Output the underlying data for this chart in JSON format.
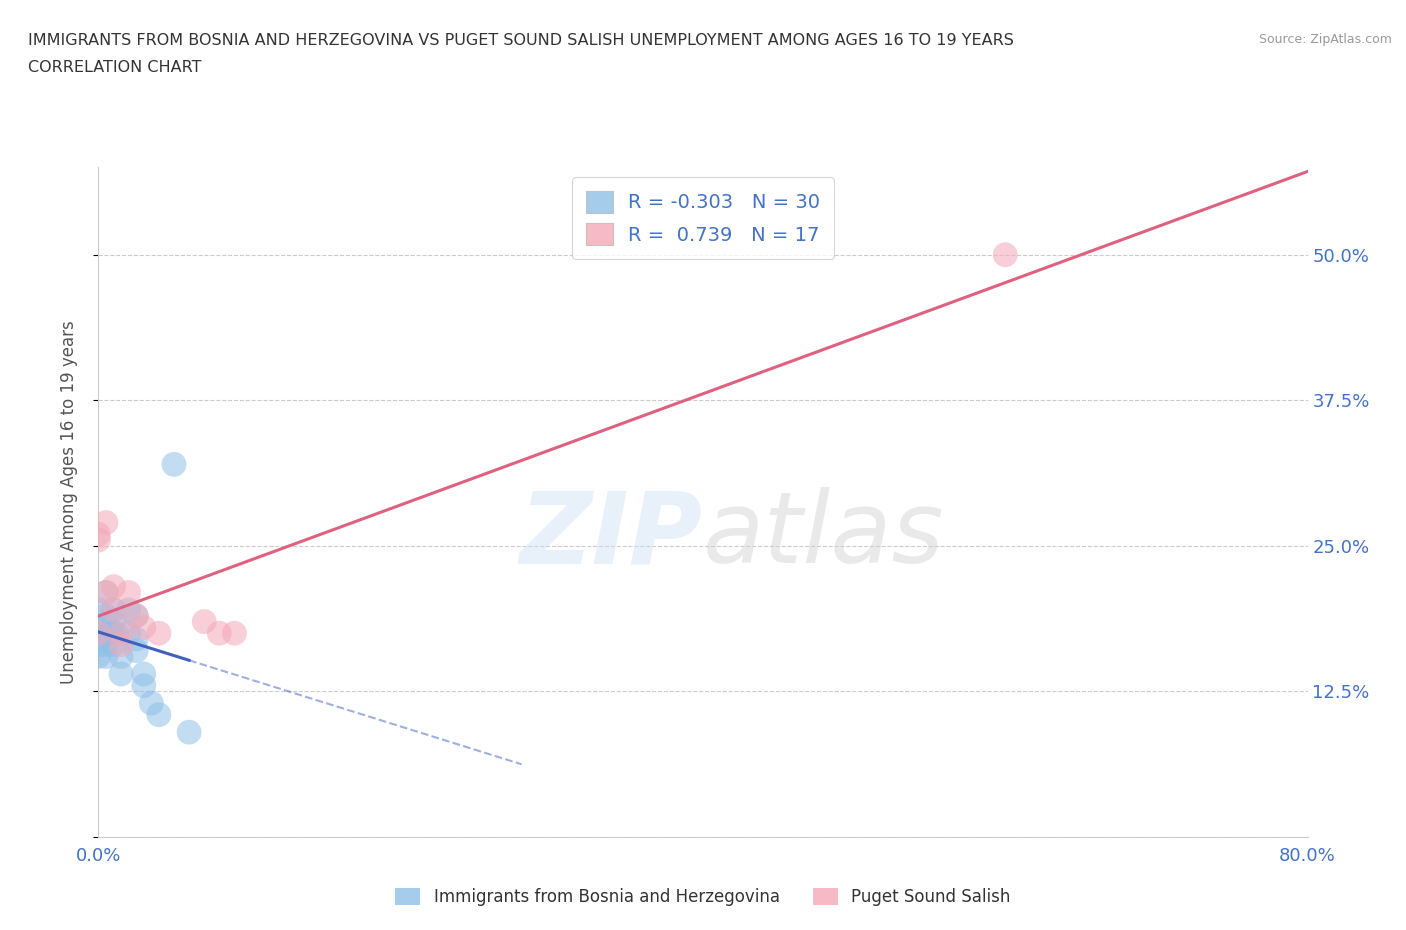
{
  "title_line1": "IMMIGRANTS FROM BOSNIA AND HERZEGOVINA VS PUGET SOUND SALISH UNEMPLOYMENT AMONG AGES 16 TO 19 YEARS",
  "title_line2": "CORRELATION CHART",
  "source": "Source: ZipAtlas.com",
  "ylabel": "Unemployment Among Ages 16 to 19 years",
  "xlim": [
    0.0,
    0.8
  ],
  "ylim": [
    0.0,
    0.575
  ],
  "xticks": [
    0.0,
    0.2,
    0.4,
    0.6,
    0.8
  ],
  "xticklabels": [
    "0.0%",
    "",
    "",
    "",
    "80.0%"
  ],
  "yticks": [
    0.0,
    0.125,
    0.25,
    0.375,
    0.5
  ],
  "yticklabels_right": [
    "",
    "12.5%",
    "25.0%",
    "37.5%",
    "50.0%"
  ],
  "grid_color": "#cccccc",
  "blue_color": "#90c0e8",
  "pink_color": "#f4a8b8",
  "blue_line_color": "#4060c0",
  "pink_line_color": "#e06080",
  "legend_R1": "-0.303",
  "legend_N1": "30",
  "legend_R2": "0.739",
  "legend_N2": "17",
  "legend_label1": "Immigrants from Bosnia and Herzegovina",
  "legend_label2": "Puget Sound Salish",
  "blue_dots": [
    [
      0.0,
      0.195
    ],
    [
      0.0,
      0.18
    ],
    [
      0.0,
      0.17
    ],
    [
      0.0,
      0.165
    ],
    [
      0.0,
      0.155
    ],
    [
      0.0,
      0.175
    ],
    [
      0.005,
      0.21
    ],
    [
      0.005,
      0.19
    ],
    [
      0.005,
      0.175
    ],
    [
      0.005,
      0.165
    ],
    [
      0.005,
      0.155
    ],
    [
      0.008,
      0.175
    ],
    [
      0.01,
      0.195
    ],
    [
      0.01,
      0.185
    ],
    [
      0.01,
      0.175
    ],
    [
      0.01,
      0.165
    ],
    [
      0.012,
      0.175
    ],
    [
      0.015,
      0.155
    ],
    [
      0.015,
      0.14
    ],
    [
      0.02,
      0.195
    ],
    [
      0.02,
      0.175
    ],
    [
      0.025,
      0.19
    ],
    [
      0.025,
      0.17
    ],
    [
      0.025,
      0.16
    ],
    [
      0.03,
      0.14
    ],
    [
      0.03,
      0.13
    ],
    [
      0.035,
      0.115
    ],
    [
      0.04,
      0.105
    ],
    [
      0.05,
      0.32
    ],
    [
      0.06,
      0.09
    ]
  ],
  "pink_dots": [
    [
      0.0,
      0.26
    ],
    [
      0.0,
      0.255
    ],
    [
      0.0,
      0.175
    ],
    [
      0.005,
      0.27
    ],
    [
      0.005,
      0.21
    ],
    [
      0.01,
      0.215
    ],
    [
      0.01,
      0.195
    ],
    [
      0.015,
      0.175
    ],
    [
      0.015,
      0.165
    ],
    [
      0.02,
      0.21
    ],
    [
      0.025,
      0.19
    ],
    [
      0.03,
      0.18
    ],
    [
      0.04,
      0.175
    ],
    [
      0.07,
      0.185
    ],
    [
      0.08,
      0.175
    ],
    [
      0.09,
      0.175
    ],
    [
      0.6,
      0.5
    ]
  ]
}
